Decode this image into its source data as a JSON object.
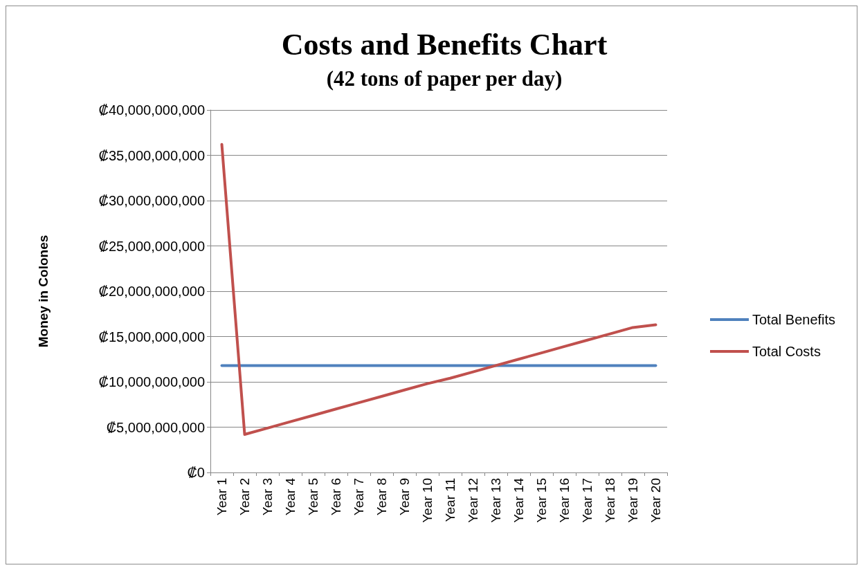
{
  "chart_data": {
    "type": "line",
    "title": "Costs and Benefits Chart",
    "subtitle": "(42 tons of paper per day)",
    "ylabel": "Money in Colones",
    "categories": [
      "Year 1",
      "Year 2",
      "Year 3",
      "Year 4",
      "Year 5",
      "Year 6",
      "Year 7",
      "Year 8",
      "Year 9",
      "Year 10",
      "Year 11",
      "Year 12",
      "Year 13",
      "Year 14",
      "Year 15",
      "Year 16",
      "Year 17",
      "Year 18",
      "Year 19",
      "Year 20"
    ],
    "series": [
      {
        "name": "Total Benefits",
        "color": "#4f81bd",
        "values": [
          11800000000,
          11800000000,
          11800000000,
          11800000000,
          11800000000,
          11800000000,
          11800000000,
          11800000000,
          11800000000,
          11800000000,
          11800000000,
          11800000000,
          11800000000,
          11800000000,
          11800000000,
          11800000000,
          11800000000,
          11800000000,
          11800000000,
          11800000000
        ]
      },
      {
        "name": "Total Costs",
        "color": "#c0504d",
        "values": [
          36200000000,
          4200000000,
          4900000000,
          5600000000,
          6300000000,
          7000000000,
          7700000000,
          8400000000,
          9100000000,
          9800000000,
          10400000000,
          11100000000,
          11800000000,
          12500000000,
          13200000000,
          13900000000,
          14600000000,
          15300000000,
          16000000000,
          16300000000
        ]
      }
    ],
    "ylim": [
      0,
      40000000000
    ],
    "yticks": [
      {
        "value": 0,
        "label": "₡0"
      },
      {
        "value": 5000000000,
        "label": "₡5,000,000,000"
      },
      {
        "value": 10000000000,
        "label": "₡10,000,000,000"
      },
      {
        "value": 15000000000,
        "label": "₡15,000,000,000"
      },
      {
        "value": 20000000000,
        "label": "₡20,000,000,000"
      },
      {
        "value": 25000000000,
        "label": "₡25,000,000,000"
      },
      {
        "value": 30000000000,
        "label": "₡30,000,000,000"
      },
      {
        "value": 35000000000,
        "label": "₡35,000,000,000"
      },
      {
        "value": 40000000000,
        "label": "₡40,000,000,000"
      }
    ],
    "grid": "y",
    "legend": "right",
    "marker": "none",
    "line_style": "solid"
  }
}
